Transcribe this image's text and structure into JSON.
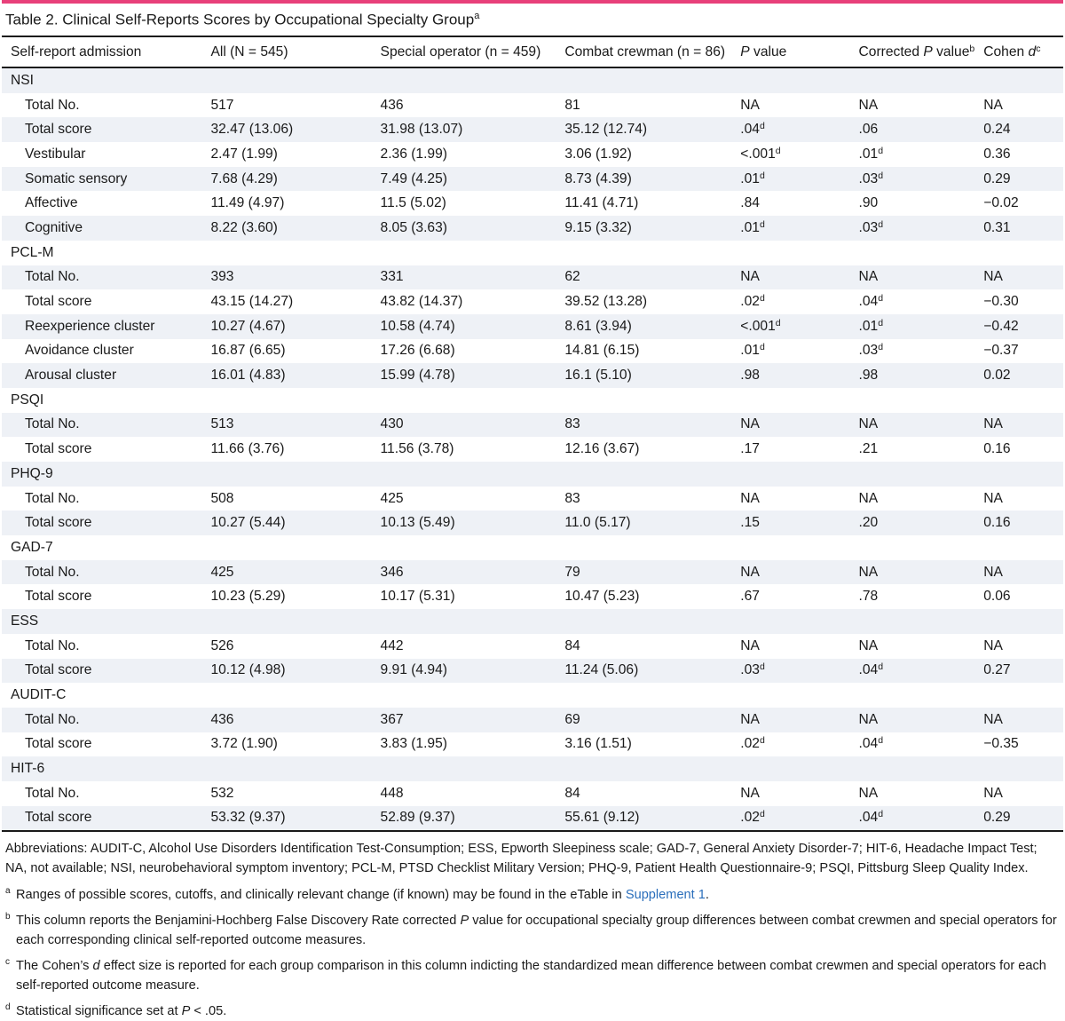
{
  "caption": {
    "title": "Table 2. Clinical Self-Reports Scores by Occupational Specialty Group",
    "marker": "a"
  },
  "headers": {
    "col0": "Self-report admission",
    "col1": "All (N = 545)",
    "col2": "Special operator (n = 459)",
    "col3": "Combat crewman (n = 86)",
    "col4_italic": "P",
    "col4_rest": " value",
    "col5_pre": "Corrected ",
    "col5_italic": "P",
    "col5_rest": " value",
    "col5_marker": "b",
    "col6_pre": "Cohen ",
    "col6_italic": "d",
    "col6_marker": "c"
  },
  "rows": [
    {
      "label": "NSI",
      "group": true
    },
    {
      "label": "Total No.",
      "all": "517",
      "special": "436",
      "combat": "81",
      "p": "NA",
      "p_sup": "",
      "corr": "NA",
      "corr_sup": "",
      "d": "NA"
    },
    {
      "label": "Total score",
      "all": "32.47 (13.06)",
      "special": "31.98 (13.07)",
      "combat": "35.12 (12.74)",
      "p": ".04",
      "p_sup": "d",
      "corr": ".06",
      "corr_sup": "",
      "d": "0.24"
    },
    {
      "label": "Vestibular",
      "all": "2.47 (1.99)",
      "special": "2.36 (1.99)",
      "combat": "3.06 (1.92)",
      "p": "<.001",
      "p_sup": "d",
      "corr": ".01",
      "corr_sup": "d",
      "d": "0.36"
    },
    {
      "label": "Somatic sensory",
      "all": "7.68 (4.29)",
      "special": "7.49 (4.25)",
      "combat": "8.73 (4.39)",
      "p": ".01",
      "p_sup": "d",
      "corr": ".03",
      "corr_sup": "d",
      "d": "0.29"
    },
    {
      "label": "Affective",
      "all": "11.49 (4.97)",
      "special": "11.5 (5.02)",
      "combat": "11.41 (4.71)",
      "p": ".84",
      "p_sup": "",
      "corr": ".90",
      "corr_sup": "",
      "d": "−0.02"
    },
    {
      "label": "Cognitive",
      "all": "8.22 (3.60)",
      "special": "8.05 (3.63)",
      "combat": "9.15 (3.32)",
      "p": ".01",
      "p_sup": "d",
      "corr": ".03",
      "corr_sup": "d",
      "d": "0.31"
    },
    {
      "label": "PCL-M",
      "group": true
    },
    {
      "label": "Total No.",
      "all": "393",
      "special": "331",
      "combat": "62",
      "p": "NA",
      "p_sup": "",
      "corr": "NA",
      "corr_sup": "",
      "d": "NA"
    },
    {
      "label": "Total score",
      "all": "43.15 (14.27)",
      "special": "43.82 (14.37)",
      "combat": "39.52 (13.28)",
      "p": ".02",
      "p_sup": "d",
      "corr": ".04",
      "corr_sup": "d",
      "d": "−0.30"
    },
    {
      "label": "Reexperience cluster",
      "all": "10.27 (4.67)",
      "special": "10.58 (4.74)",
      "combat": "8.61 (3.94)",
      "p": "<.001",
      "p_sup": "d",
      "corr": ".01",
      "corr_sup": "d",
      "d": "−0.42"
    },
    {
      "label": "Avoidance cluster",
      "all": "16.87 (6.65)",
      "special": "17.26 (6.68)",
      "combat": "14.81 (6.15)",
      "p": ".01",
      "p_sup": "d",
      "corr": ".03",
      "corr_sup": "d",
      "d": "−0.37"
    },
    {
      "label": "Arousal cluster",
      "all": "16.01 (4.83)",
      "special": "15.99 (4.78)",
      "combat": "16.1 (5.10)",
      "p": ".98",
      "p_sup": "",
      "corr": ".98",
      "corr_sup": "",
      "d": "0.02"
    },
    {
      "label": "PSQI",
      "group": true
    },
    {
      "label": "Total No.",
      "all": "513",
      "special": "430",
      "combat": "83",
      "p": "NA",
      "p_sup": "",
      "corr": "NA",
      "corr_sup": "",
      "d": "NA"
    },
    {
      "label": "Total score",
      "all": "11.66 (3.76)",
      "special": "11.56 (3.78)",
      "combat": "12.16 (3.67)",
      "p": ".17",
      "p_sup": "",
      "corr": ".21",
      "corr_sup": "",
      "d": "0.16"
    },
    {
      "label": "PHQ-9",
      "group": true
    },
    {
      "label": "Total No.",
      "all": "508",
      "special": "425",
      "combat": "83",
      "p": "NA",
      "p_sup": "",
      "corr": "NA",
      "corr_sup": "",
      "d": "NA"
    },
    {
      "label": "Total score",
      "all": "10.27 (5.44)",
      "special": "10.13 (5.49)",
      "combat": "11.0 (5.17)",
      "p": ".15",
      "p_sup": "",
      "corr": ".20",
      "corr_sup": "",
      "d": "0.16"
    },
    {
      "label": "GAD-7",
      "group": true
    },
    {
      "label": "Total No.",
      "all": "425",
      "special": "346",
      "combat": "79",
      "p": "NA",
      "p_sup": "",
      "corr": "NA",
      "corr_sup": "",
      "d": "NA"
    },
    {
      "label": "Total score",
      "all": "10.23 (5.29)",
      "special": "10.17 (5.31)",
      "combat": "10.47 (5.23)",
      "p": ".67",
      "p_sup": "",
      "corr": ".78",
      "corr_sup": "",
      "d": "0.06"
    },
    {
      "label": "ESS",
      "group": true
    },
    {
      "label": "Total No.",
      "all": "526",
      "special": "442",
      "combat": "84",
      "p": "NA",
      "p_sup": "",
      "corr": "NA",
      "corr_sup": "",
      "d": "NA"
    },
    {
      "label": "Total score",
      "all": "10.12 (4.98)",
      "special": "9.91 (4.94)",
      "combat": "11.24 (5.06)",
      "p": ".03",
      "p_sup": "d",
      "corr": ".04",
      "corr_sup": "d",
      "d": "0.27"
    },
    {
      "label": "AUDIT-C",
      "group": true
    },
    {
      "label": "Total No.",
      "all": "436",
      "special": "367",
      "combat": "69",
      "p": "NA",
      "p_sup": "",
      "corr": "NA",
      "corr_sup": "",
      "d": "NA"
    },
    {
      "label": "Total score",
      "all": "3.72 (1.90)",
      "special": "3.83 (1.95)",
      "combat": "3.16 (1.51)",
      "p": ".02",
      "p_sup": "d",
      "corr": ".04",
      "corr_sup": "d",
      "d": "−0.35"
    },
    {
      "label": "HIT-6",
      "group": true
    },
    {
      "label": "Total No.",
      "all": "532",
      "special": "448",
      "combat": "84",
      "p": "NA",
      "p_sup": "",
      "corr": "NA",
      "corr_sup": "",
      "d": "NA"
    },
    {
      "label": "Total score",
      "all": "53.32 (9.37)",
      "special": "52.89 (9.37)",
      "combat": "55.61 (9.12)",
      "p": ".02",
      "p_sup": "d",
      "corr": ".04",
      "corr_sup": "d",
      "d": "0.29"
    }
  ],
  "abbreviations": "Abbreviations: AUDIT-C, Alcohol Use Disorders Identification Test-Consumption; ESS, Epworth Sleepiness scale; GAD-7, General Anxiety Disorder-7; HIT-6, Headache Impact Test; NA, not available; NSI, neurobehavioral symptom inventory; PCL-M, PTSD Checklist Military Version; PHQ-9, Patient Health Questionnaire-9; PSQI, Pittsburg Sleep Quality Index.",
  "footnotes": {
    "a": {
      "marker": "a",
      "text": "Ranges of possible scores, cutoffs, and clinically relevant change (if known) may be found in the eTable in ",
      "link": "Supplement 1",
      "after": "."
    },
    "b": {
      "marker": "b",
      "pre": "This column reports the Benjamini-Hochberg False Discovery Rate corrected ",
      "italic": "P",
      "post": " value for occupational specialty group differences between combat crewmen and special operators for each corresponding clinical self-reported outcome measures."
    },
    "c": {
      "marker": "c",
      "pre": "The Cohen’s ",
      "italic": "d",
      "post": " effect size is reported for each group comparison in this column indicting the standardized mean difference between combat crewmen and special operators for each self-reported outcome measure."
    },
    "d": {
      "marker": "d",
      "pre": "Statistical significance set at ",
      "italic": "P",
      "post": " < .05."
    }
  },
  "colors": {
    "accent_rule": "#e8407a",
    "stripe": "#eef1f6",
    "link": "#2a6ebb"
  }
}
